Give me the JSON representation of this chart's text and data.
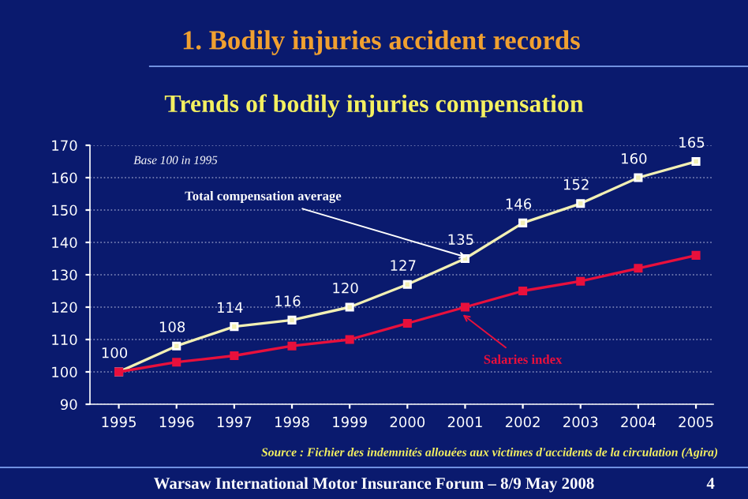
{
  "chart_data": {
    "type": "line",
    "title": "1. Bodily injuries accident records",
    "subtitle": "Trends of bodily injuries compensation",
    "categories": [
      "1995",
      "1996",
      "1997",
      "1998",
      "1999",
      "2000",
      "2001",
      "2002",
      "2003",
      "2004",
      "2005"
    ],
    "series": [
      {
        "name": "Total compensation average",
        "color": "#f2f0b4",
        "values": [
          100,
          108,
          114,
          116,
          120,
          127,
          135,
          146,
          152,
          160,
          165
        ],
        "value_labels": [
          "100",
          "108",
          "114",
          "116",
          "120",
          "127",
          "135",
          "146",
          "152",
          "160",
          "165"
        ]
      },
      {
        "name": "Salaries index",
        "color": "#e8103c",
        "values": [
          100,
          103,
          105,
          108,
          110,
          115,
          120,
          125,
          128,
          132,
          136
        ]
      }
    ],
    "ylim": [
      90,
      170
    ],
    "yticks": [
      90,
      100,
      110,
      120,
      130,
      140,
      150,
      160,
      170
    ],
    "grid": "y",
    "marker": "square",
    "line_style": "solid",
    "annotations": [
      "Base 100 in 1995",
      "Source : Fichier des indemnités allouées aux victimes d'accidents de la circulation (Agira)",
      "Warsaw International Motor Insurance Forum – 8/9 May 2008",
      "4"
    ]
  }
}
